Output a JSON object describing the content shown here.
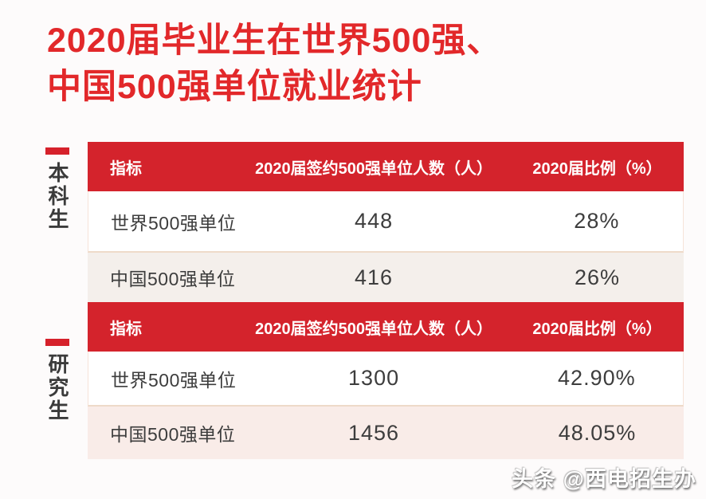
{
  "title": {
    "line1": "2020届毕业生在世界500强、",
    "line2": "中国500强单位就业统计"
  },
  "colors": {
    "title_red": "#e2282a",
    "header_red": "#d4232c",
    "dash_red": "#d6212b",
    "row_warm": "#f4efeb",
    "row_pink": "#f9ece8",
    "page_bg": "#fdfbfb"
  },
  "sections": [
    {
      "label": "本科生",
      "table": {
        "headers": [
          "指标",
          "2020届签约500强单位人数（人）",
          "2020届比例（%）"
        ],
        "rows": [
          {
            "indicator": "世界500强单位",
            "count": "448",
            "ratio": "28%"
          },
          {
            "indicator": "中国500强单位",
            "count": "416",
            "ratio": "26%"
          }
        ]
      }
    },
    {
      "label": "研究生",
      "table": {
        "headers": [
          "指标",
          "2020届签约500强单位人数（人）",
          "2020届比例（%）"
        ],
        "rows": [
          {
            "indicator": "世界500强单位",
            "count": "1300",
            "ratio": "42.90%"
          },
          {
            "indicator": "中国500强单位",
            "count": "1456",
            "ratio": "48.05%"
          }
        ]
      }
    }
  ],
  "watermark": {
    "text": "头条 @西电招生办"
  }
}
